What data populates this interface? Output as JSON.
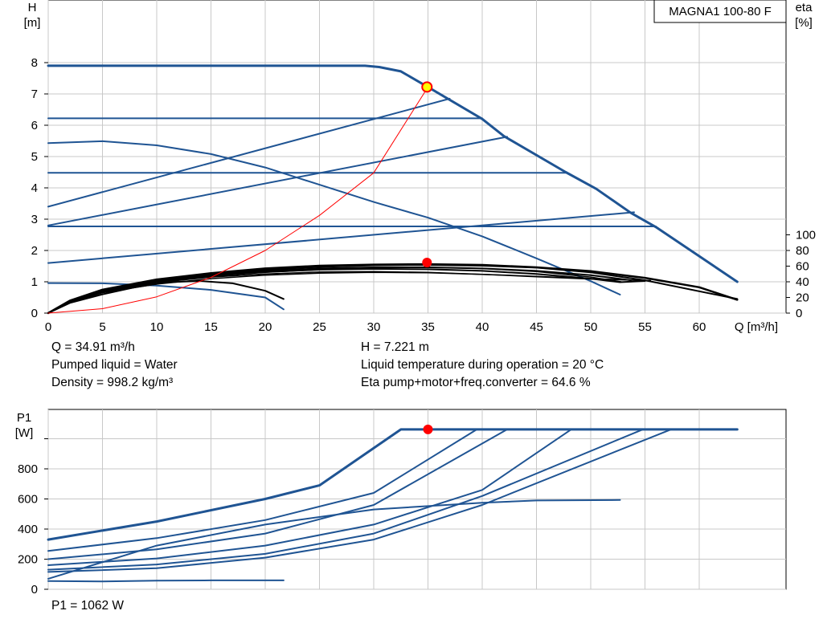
{
  "pump_name": "MAGNA1 100-80 F",
  "info": {
    "flow": "Q = 34.91 m³/h",
    "head": "H = 7.221 m",
    "liquid": "Pumped liquid = Water",
    "liquid_temperature": "Liquid temperature during operation = 20 °C",
    "density": "Density = 998.2 kg/m³",
    "eta_total": "Eta pump+motor+freq.converter = 64.6 %",
    "power": "P1 = 1062 W"
  },
  "colors": {
    "curve": "#1f5493",
    "efficiency": "#000000",
    "system_curve": "#ff0000",
    "duty_marker": "#ff0000",
    "duty_marker_head": "#ffff00",
    "grid": "#c8c8c8"
  },
  "chart_data": [
    {
      "type": "line",
      "title": "MAGNA1 100-80 F",
      "xlabel": "Q [m³/h]",
      "ylabel": "H\n[m]",
      "ylabel_right": "eta\n[%]",
      "xlim": [
        0,
        68
      ],
      "ylim": [
        0,
        9
      ],
      "ylim_right": [
        0,
        180
      ],
      "x_ticks": [
        0,
        5,
        10,
        15,
        20,
        25,
        30,
        35,
        40,
        45,
        50,
        55,
        60
      ],
      "y_ticks": [
        0,
        1,
        2,
        3,
        4,
        5,
        6,
        7,
        8
      ],
      "y_right_ticks": [
        0,
        20,
        40,
        60,
        80,
        100
      ],
      "grid": true,
      "series": [
        {
          "role": "max-curve",
          "axis": "left",
          "width": 3,
          "points": [
            [
              0,
              7.9
            ],
            [
              29.2,
              7.9
            ],
            [
              30.5,
              7.86
            ],
            [
              32.5,
              7.72
            ],
            [
              35,
              7.221
            ],
            [
              40,
              6.2
            ],
            [
              42,
              5.65
            ],
            [
              47.7,
              4.5
            ],
            [
              50.5,
              3.97
            ],
            [
              53.7,
              3.2
            ],
            [
              56,
              2.75
            ],
            [
              63.5,
              1.0
            ]
          ]
        },
        {
          "role": "constant-pressure",
          "axis": "left",
          "width": 2,
          "points": [
            [
              0,
              6.22
            ],
            [
              40,
              6.22
            ]
          ]
        },
        {
          "role": "constant-pressure",
          "axis": "left",
          "width": 2,
          "points": [
            [
              0,
              4.48
            ],
            [
              47.7,
              4.48
            ]
          ]
        },
        {
          "role": "constant-pressure",
          "axis": "left",
          "width": 2,
          "points": [
            [
              0,
              2.77
            ],
            [
              56,
              2.77
            ]
          ]
        },
        {
          "role": "proportional-pressure",
          "axis": "left",
          "width": 2,
          "points": [
            [
              0,
              3.4
            ],
            [
              37,
              6.85
            ]
          ]
        },
        {
          "role": "proportional-pressure",
          "axis": "left",
          "width": 2,
          "points": [
            [
              0,
              2.8
            ],
            [
              42.3,
              5.63
            ]
          ]
        },
        {
          "role": "proportional-pressure",
          "axis": "left",
          "width": 2,
          "points": [
            [
              0,
              1.6
            ],
            [
              54,
              3.22
            ]
          ]
        },
        {
          "role": "fixed-speed",
          "axis": "left",
          "width": 2,
          "points": [
            [
              0,
              5.43
            ],
            [
              5,
              5.49
            ],
            [
              10,
              5.36
            ],
            [
              15,
              5.08
            ],
            [
              20,
              4.65
            ],
            [
              25,
              4.1
            ],
            [
              30,
              3.55
            ],
            [
              35,
              3.05
            ],
            [
              40,
              2.45
            ],
            [
              45,
              1.75
            ],
            [
              50,
              1.02
            ],
            [
              52.7,
              0.59
            ]
          ]
        },
        {
          "role": "fixed-speed",
          "axis": "left",
          "width": 2,
          "points": [
            [
              0,
              0.96
            ],
            [
              5,
              0.95
            ],
            [
              10,
              0.88
            ],
            [
              15,
              0.74
            ],
            [
              20,
              0.5
            ],
            [
              21.7,
              0.12
            ]
          ]
        },
        {
          "role": "efficiency",
          "axis": "right",
          "width": 2.5,
          "points": [
            [
              0,
              0
            ],
            [
              2,
              16
            ],
            [
              5,
              30
            ],
            [
              10,
              43
            ],
            [
              15,
              51
            ],
            [
              20,
              57
            ],
            [
              25,
              60.5
            ],
            [
              30,
              62
            ],
            [
              35,
              62.5
            ],
            [
              40,
              61.5
            ],
            [
              45,
              58.5
            ],
            [
              50,
              53.5
            ],
            [
              55,
              45
            ],
            [
              60,
              33
            ],
            [
              63.5,
              17
            ]
          ]
        },
        {
          "role": "efficiency",
          "axis": "right",
          "width": 2,
          "points": [
            [
              0,
              0
            ],
            [
              2,
              15
            ],
            [
              5,
              29
            ],
            [
              10,
              42
            ],
            [
              15,
              50
            ],
            [
              20,
              55.5
            ],
            [
              25,
              59
            ],
            [
              30,
              61
            ],
            [
              35,
              61.5
            ],
            [
              40,
              60.5
            ],
            [
              45,
              58
            ],
            [
              50,
              52
            ],
            [
              55,
              42
            ],
            [
              63.5,
              18
            ]
          ]
        },
        {
          "role": "efficiency",
          "axis": "right",
          "width": 2,
          "points": [
            [
              0,
              0
            ],
            [
              2,
              14.5
            ],
            [
              5,
              28
            ],
            [
              10,
              41
            ],
            [
              15,
              49
            ],
            [
              20,
              54
            ],
            [
              25,
              57
            ],
            [
              30,
              58.5
            ],
            [
              35,
              58.5
            ],
            [
              40,
              57
            ],
            [
              45,
              54
            ],
            [
              50,
              48.5
            ],
            [
              53.7,
              42
            ]
          ]
        },
        {
          "role": "efficiency",
          "axis": "right",
          "width": 2,
          "points": [
            [
              0,
              0
            ],
            [
              2,
              14
            ],
            [
              5,
              27.5
            ],
            [
              10,
              40
            ],
            [
              15,
              48
            ],
            [
              20,
              52.5
            ],
            [
              25,
              55.5
            ],
            [
              30,
              56.5
            ],
            [
              35,
              56
            ],
            [
              40,
              54
            ],
            [
              45,
              50
            ],
            [
              50,
              44
            ],
            [
              52.7,
              39.5
            ],
            [
              55,
              41
            ]
          ]
        },
        {
          "role": "efficiency",
          "axis": "right",
          "width": 1.5,
          "points": [
            [
              0,
              0
            ],
            [
              2,
              14
            ],
            [
              5,
              27
            ],
            [
              10,
              39
            ],
            [
              15,
              46
            ],
            [
              20,
              50
            ],
            [
              25,
              52.5
            ],
            [
              30,
              53
            ],
            [
              35,
              52
            ],
            [
              40,
              49.5
            ],
            [
              45,
              46.5
            ],
            [
              50,
              43.5
            ],
            [
              55.5,
              41.5
            ]
          ]
        },
        {
          "role": "efficiency",
          "axis": "right",
          "width": 1.5,
          "points": [
            [
              0,
              0
            ],
            [
              2,
              13.5
            ],
            [
              5,
              26
            ],
            [
              10,
              37
            ],
            [
              15,
              44
            ],
            [
              20,
              48.5
            ],
            [
              25,
              51
            ],
            [
              30,
              52
            ],
            [
              35,
              51.5
            ],
            [
              40,
              49.5
            ],
            [
              45,
              47
            ],
            [
              50,
              44
            ],
            [
              55.5,
              41.5
            ]
          ]
        },
        {
          "role": "efficiency",
          "axis": "right",
          "width": 1.5,
          "points": [
            [
              0,
              0
            ],
            [
              2,
              15
            ],
            [
              5,
              29
            ],
            [
              10,
              40
            ],
            [
              15,
              47
            ],
            [
              20,
              52
            ],
            [
              25,
              55.5
            ],
            [
              30,
              58
            ],
            [
              35,
              58.5
            ],
            [
              40,
              57
            ],
            [
              45,
              53
            ],
            [
              50,
              46
            ],
            [
              52.8,
              40
            ]
          ]
        },
        {
          "role": "efficiency",
          "axis": "right",
          "width": 2,
          "points": [
            [
              0,
              0
            ],
            [
              2,
              13
            ],
            [
              5,
              24
            ],
            [
              8,
              33
            ],
            [
              11,
              39.5
            ],
            [
              14,
              41
            ],
            [
              17,
              38
            ],
            [
              20,
              28.5
            ],
            [
              21.7,
              18
            ]
          ]
        },
        {
          "role": "system-curve",
          "axis": "left",
          "width": 1,
          "points": [
            [
              0,
              0
            ],
            [
              5,
              0.14
            ],
            [
              10,
              0.52
            ],
            [
              15,
              1.14
            ],
            [
              20,
              2.0
            ],
            [
              25,
              3.12
            ],
            [
              30,
              4.48
            ],
            [
              35,
              7.221
            ]
          ]
        }
      ],
      "points": [
        {
          "role": "duty-point",
          "axis": "left",
          "x": 34.91,
          "y": 7.221
        },
        {
          "role": "efficiency-at-duty",
          "axis": "right",
          "x": 34.91,
          "y": 64.6
        }
      ]
    },
    {
      "type": "line",
      "xlabel": "",
      "ylabel": "P1\n[W]",
      "xlim": [
        0,
        68
      ],
      "ylim": [
        0,
        1200
      ],
      "y_ticks": [
        0,
        200,
        400,
        600,
        800
      ],
      "grid": true,
      "series": [
        {
          "role": "max-curve",
          "axis": "left",
          "width": 3,
          "points": [
            [
              0,
              330
            ],
            [
              10,
              450
            ],
            [
              20,
              600
            ],
            [
              25,
              690
            ],
            [
              32.5,
              1062
            ],
            [
              63.5,
              1062
            ]
          ]
        },
        {
          "role": "curve",
          "axis": "left",
          "width": 2,
          "points": [
            [
              0,
              255
            ],
            [
              10,
              340
            ],
            [
              20,
              460
            ],
            [
              30,
              640
            ],
            [
              39.5,
              1062
            ]
          ]
        },
        {
          "role": "curve",
          "axis": "left",
          "width": 2,
          "points": [
            [
              0,
              200
            ],
            [
              10,
              265
            ],
            [
              20,
              370
            ],
            [
              30,
              560
            ],
            [
              42.3,
              1062
            ]
          ]
        },
        {
          "role": "curve",
          "axis": "left",
          "width": 2,
          "points": [
            [
              0,
              160
            ],
            [
              10,
              205
            ],
            [
              20,
              290
            ],
            [
              30,
              430
            ],
            [
              40,
              660
            ],
            [
              48.2,
              1062
            ]
          ]
        },
        {
          "role": "curve",
          "axis": "left",
          "width": 2,
          "points": [
            [
              0,
              130
            ],
            [
              10,
              165
            ],
            [
              20,
              235
            ],
            [
              30,
              370
            ],
            [
              40,
              620
            ],
            [
              54.8,
              1062
            ]
          ]
        },
        {
          "role": "curve",
          "axis": "left",
          "width": 2,
          "points": [
            [
              0,
              115
            ],
            [
              10,
              140
            ],
            [
              20,
              210
            ],
            [
              30,
              330
            ],
            [
              40,
              560
            ],
            [
              57.4,
              1062
            ]
          ]
        },
        {
          "role": "fixed-speed",
          "axis": "left",
          "width": 2,
          "points": [
            [
              0,
              70
            ],
            [
              10,
              290
            ],
            [
              20,
              430
            ],
            [
              30,
              530
            ],
            [
              40,
              575
            ],
            [
              45,
              590
            ],
            [
              52.7,
              593
            ]
          ]
        },
        {
          "role": "fixed-speed",
          "axis": "left",
          "width": 2,
          "points": [
            [
              0,
              55
            ],
            [
              5,
              52
            ],
            [
              10,
              57
            ],
            [
              15,
              59
            ],
            [
              21.7,
              59
            ]
          ]
        }
      ],
      "points": [
        {
          "role": "duty-point",
          "axis": "left",
          "x": 35,
          "y": 1062
        }
      ]
    }
  ]
}
